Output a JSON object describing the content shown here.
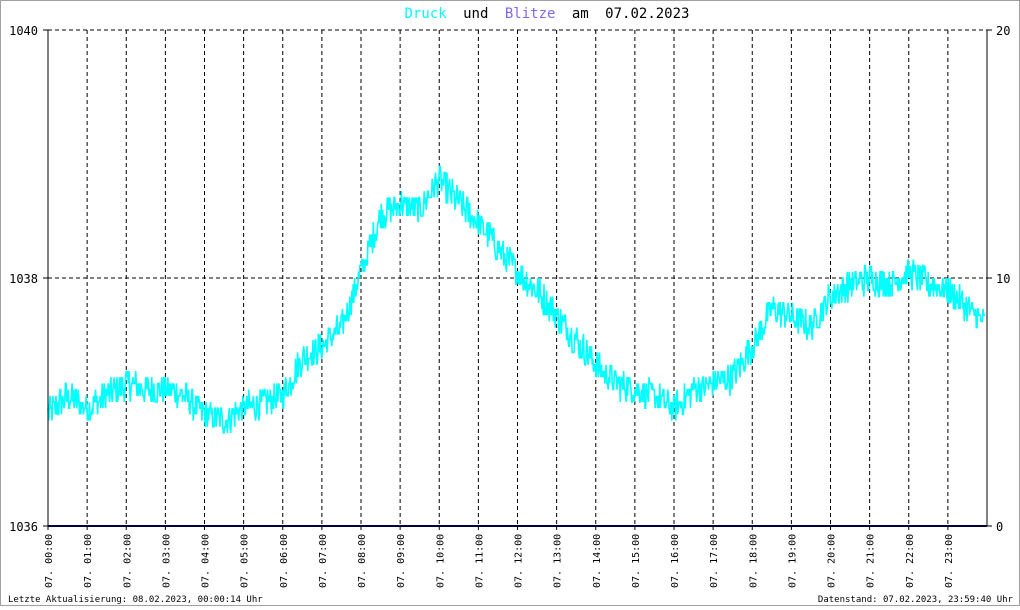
{
  "title": {
    "word_druck": "Druck",
    "word_und": "und",
    "word_blitze": "Blitze",
    "word_am": "am",
    "date": "07.02.2023"
  },
  "footer": {
    "left": "Letzte Aktualisierung: 08.02.2023, 00:00:14 Uhr",
    "right": "Datenstand: 07.02.2023, 23:59:40 Uhr"
  },
  "colors": {
    "pressure": "#00ffff",
    "lightning": "#000080",
    "title_blitze": "#7b68ee",
    "text": "#000000",
    "grid": "#000000",
    "frame": "#000000",
    "border": "#a0a0a0"
  },
  "chart_data": {
    "type": "line",
    "x_ticks": [
      "07. 00:00",
      "07. 01:00",
      "07. 02:00",
      "07. 03:00",
      "07. 04:00",
      "07. 05:00",
      "07. 06:00",
      "07. 07:00",
      "07. 08:00",
      "07. 09:00",
      "07. 10:00",
      "07. 11:00",
      "07. 12:00",
      "07. 13:00",
      "07. 14:00",
      "07. 15:00",
      "07. 16:00",
      "07. 17:00",
      "07. 18:00",
      "07. 19:00",
      "07. 20:00",
      "07. 21:00",
      "07. 22:00",
      "07. 23:00"
    ],
    "x_range_hours": [
      0,
      24
    ],
    "y_left": {
      "range": [
        1036,
        1040
      ],
      "ticks": [
        "1036",
        "1038",
        "1040"
      ]
    },
    "y_right": {
      "range": [
        0,
        20
      ],
      "ticks": [
        "0",
        "10",
        "20"
      ]
    },
    "grid": true,
    "series": [
      {
        "name": "Druck",
        "axis": "left",
        "x_hours": [
          0.0,
          0.5,
          1.0,
          1.5,
          2.0,
          2.5,
          3.0,
          3.5,
          4.0,
          4.5,
          5.0,
          5.5,
          6.0,
          6.5,
          7.0,
          7.5,
          8.0,
          8.5,
          9.0,
          9.5,
          10.0,
          10.5,
          11.0,
          11.5,
          12.0,
          12.5,
          13.0,
          13.5,
          14.0,
          14.5,
          15.0,
          15.5,
          16.0,
          16.5,
          17.0,
          17.5,
          18.0,
          18.5,
          19.0,
          19.5,
          20.0,
          20.5,
          21.0,
          21.5,
          22.0,
          22.5,
          23.0,
          23.5,
          23.95
        ],
        "values": [
          1036.9,
          1037.05,
          1036.95,
          1037.05,
          1037.15,
          1037.1,
          1037.1,
          1037.05,
          1036.9,
          1036.85,
          1036.95,
          1037.0,
          1037.05,
          1037.35,
          1037.45,
          1037.6,
          1038.05,
          1038.5,
          1038.6,
          1038.55,
          1038.8,
          1038.6,
          1038.45,
          1038.25,
          1038.05,
          1037.9,
          1037.7,
          1037.5,
          1037.3,
          1037.15,
          1037.1,
          1037.05,
          1036.95,
          1037.1,
          1037.15,
          1037.2,
          1037.45,
          1037.75,
          1037.7,
          1037.6,
          1037.85,
          1037.95,
          1038.0,
          1037.95,
          1038.05,
          1037.95,
          1037.9,
          1037.75,
          1037.65
        ],
        "noise_amplitude": 0.12
      },
      {
        "name": "Blitze",
        "axis": "right",
        "x_hours": [
          0,
          24
        ],
        "values": [
          0,
          0
        ]
      }
    ]
  }
}
